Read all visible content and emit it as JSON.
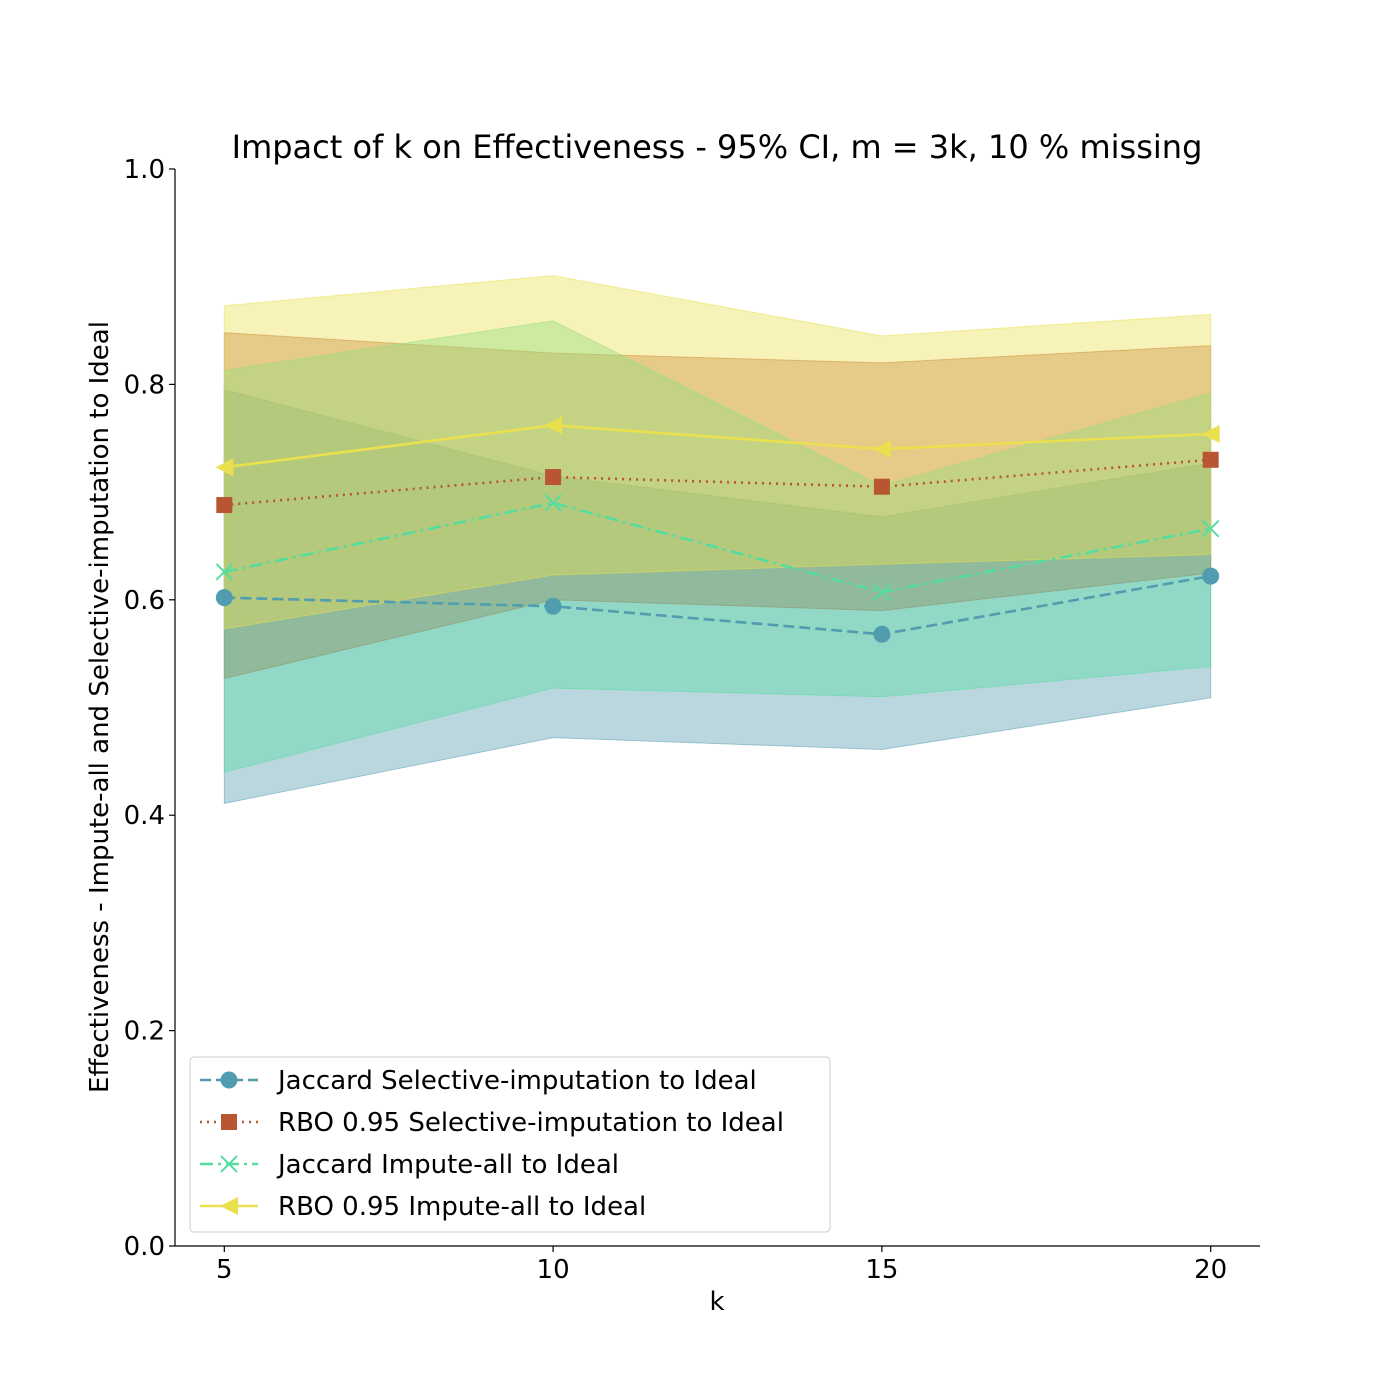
{
  "chart_data": {
    "type": "line",
    "title": "Impact of k on Effectiveness - 95% CI, m = 3k, 10 % missing",
    "xlabel": "k",
    "ylabel": "Effectiveness - Impute-all and Selective-imputation to Ideal",
    "x": [
      5,
      10,
      15,
      20
    ],
    "xlim": [
      4.25,
      20.75
    ],
    "ylim": [
      0.0,
      1.0
    ],
    "xticks": [
      5,
      10,
      15,
      20
    ],
    "yticks": [
      0.0,
      0.2,
      0.4,
      0.6,
      0.8,
      1.0
    ],
    "ytick_labels": [
      "0.0",
      "0.2",
      "0.4",
      "0.6",
      "0.8",
      "1.0"
    ],
    "grid": false,
    "legend_position": "lower-left",
    "series": [
      {
        "name": "Jaccard Selective-imputation to Ideal",
        "color": "#529CB0",
        "linestyle": "dashed",
        "marker": "circle",
        "values": [
          0.602,
          0.594,
          0.568,
          0.622
        ],
        "ci_lower": [
          0.411,
          0.472,
          0.461,
          0.509
        ],
        "ci_upper": [
          0.795,
          0.715,
          0.677,
          0.727
        ]
      },
      {
        "name": "RBO 0.95 Selective-imputation to Ideal",
        "color": "#B85532",
        "linestyle": "dotted",
        "marker": "square",
        "values": [
          0.688,
          0.714,
          0.705,
          0.73
        ],
        "ci_lower": [
          0.527,
          0.6,
          0.59,
          0.625
        ],
        "ci_upper": [
          0.848,
          0.829,
          0.82,
          0.836
        ]
      },
      {
        "name": "Jaccard Impute-all to Ideal",
        "color": "#55DDA0",
        "linestyle": "dashdot",
        "marker": "x",
        "values": [
          0.626,
          0.69,
          0.607,
          0.666
        ],
        "ci_lower": [
          0.44,
          0.518,
          0.51,
          0.538
        ],
        "ci_upper": [
          0.813,
          0.859,
          0.706,
          0.792
        ]
      },
      {
        "name": "RBO 0.95 Impute-all to Ideal",
        "color": "#EAE04E",
        "linestyle": "solid",
        "marker": "triangle-left",
        "values": [
          0.723,
          0.762,
          0.74,
          0.754
        ],
        "ci_lower": [
          0.573,
          0.623,
          0.633,
          0.642
        ],
        "ci_upper": [
          0.873,
          0.901,
          0.845,
          0.865
        ]
      }
    ]
  }
}
